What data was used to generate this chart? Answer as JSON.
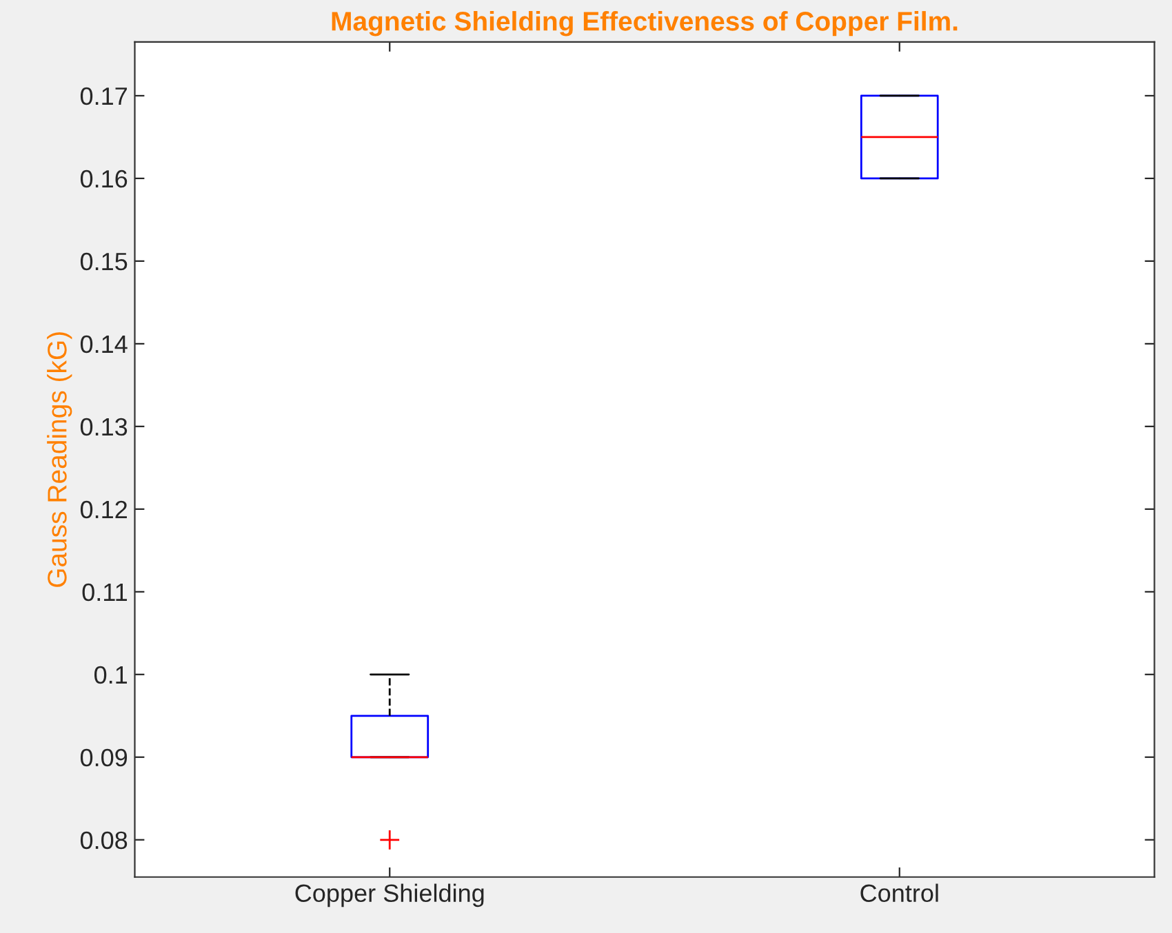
{
  "chart_data": {
    "type": "box",
    "title": "Magnetic Shielding Effectiveness of Copper Film.",
    "ylabel": "Gauss Readings (kG)",
    "categories": [
      "Copper Shielding",
      "Control"
    ],
    "boxes": [
      {
        "low": 0.09,
        "q1": 0.09,
        "median": 0.09,
        "q3": 0.095,
        "high": 0.1,
        "outliers": [
          0.08
        ]
      },
      {
        "low": 0.16,
        "q1": 0.16,
        "median": 0.165,
        "q3": 0.17,
        "high": 0.17
      }
    ],
    "color": "#0000ff",
    "ylim": [
      0.0755,
      0.1765
    ],
    "yticks": [
      0.08,
      0.09,
      0.1,
      0.11,
      0.12,
      0.13,
      0.14,
      0.15,
      0.16,
      0.17
    ],
    "grid": false
  }
}
